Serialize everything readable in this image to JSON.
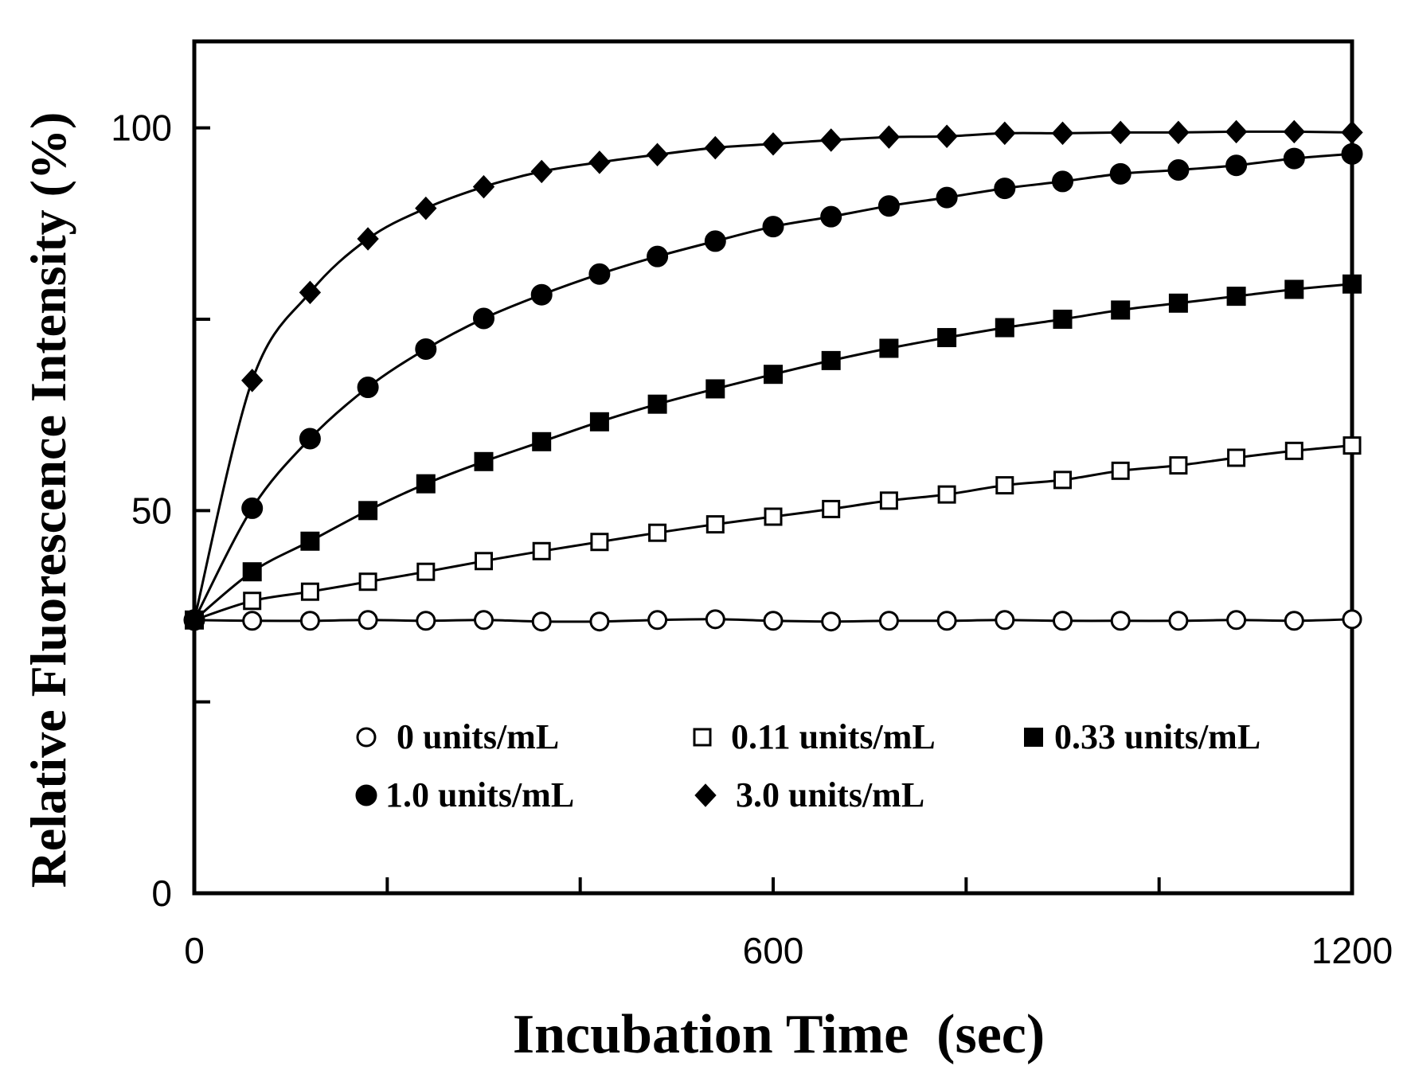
{
  "chart_data": {
    "type": "line",
    "title": "",
    "xlabel": "Incubation Time  (sec)",
    "ylabel": "Relative Fluorescence Intensity (%)",
    "xlim": [
      0,
      1200
    ],
    "ylim": [
      0,
      111.3
    ],
    "x_ticks_major": [
      0,
      600,
      1200
    ],
    "x_ticks_minor": [
      200,
      400,
      800,
      1000
    ],
    "y_ticks_major": [
      0,
      50,
      100
    ],
    "y_ticks_minor": [
      25,
      75
    ],
    "x_tick_labels": [
      "0",
      "600",
      "1200"
    ],
    "y_tick_labels": [
      "0",
      "50",
      "100"
    ],
    "grid": false,
    "legend_position": "lower-right",
    "x": [
      0,
      60,
      120,
      180,
      240,
      300,
      360,
      420,
      480,
      540,
      600,
      660,
      720,
      780,
      840,
      900,
      960,
      1020,
      1080,
      1140,
      1200
    ],
    "series": [
      {
        "name": "0 units/mL",
        "marker": "open-circle",
        "values": [
          35.7,
          35.6,
          35.6,
          35.7,
          35.6,
          35.7,
          35.5,
          35.5,
          35.7,
          35.8,
          35.6,
          35.5,
          35.6,
          35.6,
          35.7,
          35.6,
          35.6,
          35.6,
          35.7,
          35.6,
          35.8
        ]
      },
      {
        "name": "0.11 units/mL",
        "marker": "open-square",
        "values": [
          35.7,
          38.2,
          39.4,
          40.7,
          42.0,
          43.4,
          44.7,
          45.9,
          47.1,
          48.2,
          49.2,
          50.2,
          51.3,
          52.1,
          53.3,
          54.0,
          55.2,
          55.9,
          56.9,
          57.8,
          58.5
        ]
      },
      {
        "name": "0.33 units/mL",
        "marker": "filled-square",
        "values": [
          35.7,
          42.0,
          46.0,
          50.0,
          53.5,
          56.4,
          59.0,
          61.6,
          63.9,
          65.9,
          67.8,
          69.6,
          71.2,
          72.6,
          73.9,
          75.0,
          76.2,
          77.1,
          78.0,
          78.9,
          79.6
        ]
      },
      {
        "name": "1.0 units/mL",
        "marker": "filled-circle",
        "values": [
          35.7,
          50.3,
          59.4,
          66.1,
          71.1,
          75.1,
          78.2,
          80.9,
          83.2,
          85.2,
          87.1,
          88.4,
          89.8,
          90.9,
          92.1,
          93.0,
          94.0,
          94.5,
          95.1,
          96.0,
          96.6
        ]
      },
      {
        "name": "3.0 units/mL",
        "marker": "filled-diamond",
        "values": [
          35.7,
          67.0,
          78.5,
          85.5,
          89.5,
          92.3,
          94.3,
          95.5,
          96.5,
          97.4,
          97.9,
          98.4,
          98.8,
          98.9,
          99.3,
          99.3,
          99.4,
          99.4,
          99.5,
          99.5,
          99.4
        ]
      }
    ]
  }
}
